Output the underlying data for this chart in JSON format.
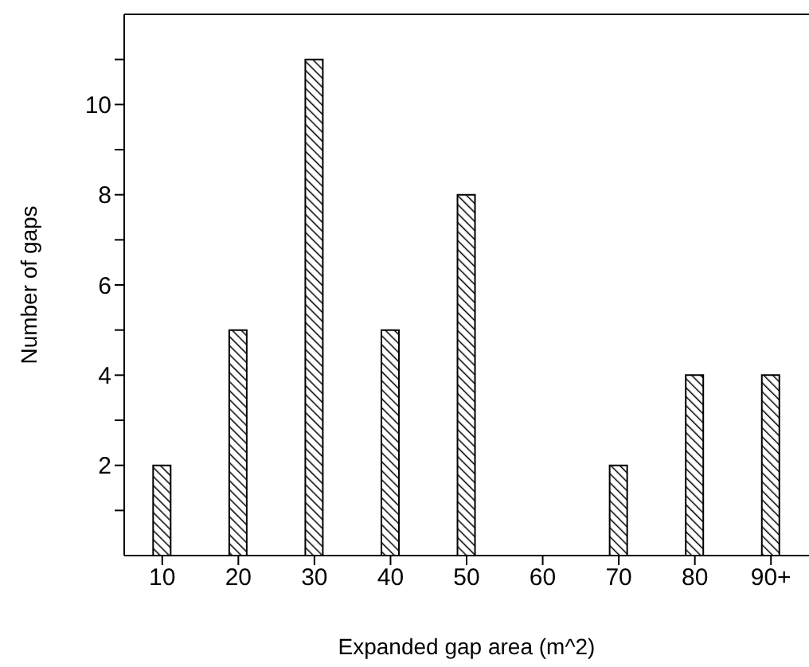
{
  "chart_data": {
    "type": "bar",
    "xlabel": "Expanded gap area (m^2)",
    "ylabel": "Number of gaps",
    "categories": [
      "10",
      "20",
      "30",
      "40",
      "50",
      "60",
      "70",
      "80",
      "90+"
    ],
    "values": [
      2,
      5,
      11,
      5,
      8,
      0,
      2,
      4,
      4
    ],
    "color": "#000000",
    "ylim": [
      0,
      12
    ],
    "yticks": [
      {
        "value": 1,
        "label": null
      },
      2,
      {
        "value": 3,
        "label": null
      },
      4,
      {
        "value": 5,
        "label": null
      },
      6,
      {
        "value": 7,
        "label": null
      },
      8,
      {
        "value": 9,
        "label": null
      },
      10,
      {
        "value": 11,
        "label": null
      }
    ],
    "grid": false,
    "legend": false
  }
}
